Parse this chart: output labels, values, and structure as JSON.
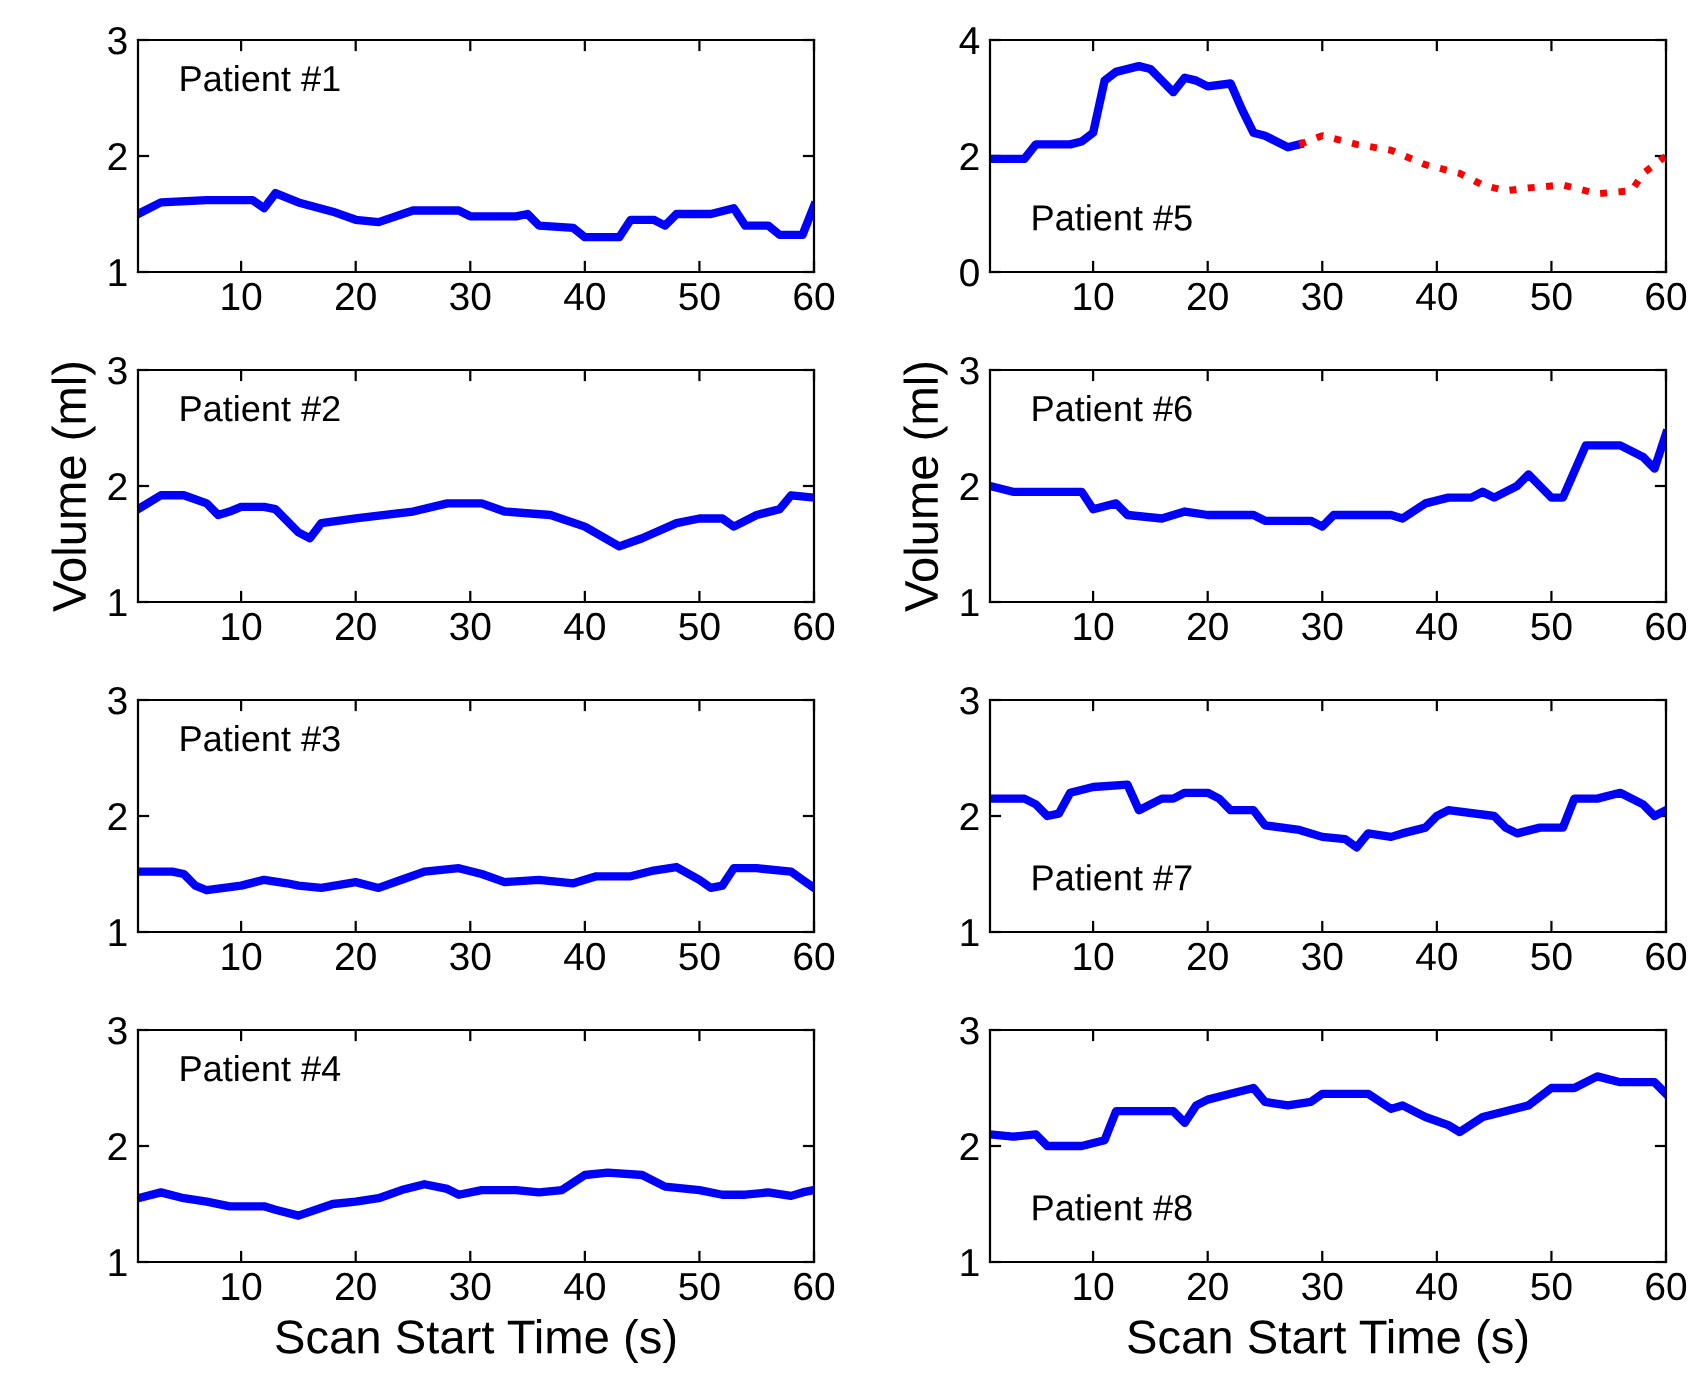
{
  "chart_data": [
    {
      "type": "line",
      "annotations": [
        "Patient #1"
      ],
      "xlim": [
        1,
        60
      ],
      "xticks": [
        10,
        20,
        30,
        40,
        50,
        60
      ],
      "ylim": [
        1,
        3
      ],
      "yticks": [
        1,
        2,
        3
      ],
      "grid": false,
      "line_style": "solid",
      "marker": "none",
      "series": [
        {
          "color": "#0000ff",
          "x": [
            1,
            3,
            7,
            11,
            12,
            13,
            15,
            18,
            20,
            22,
            25,
            29,
            30,
            34,
            35,
            36,
            39,
            40,
            43,
            44,
            46,
            47,
            48,
            51,
            53,
            54,
            56,
            57,
            59,
            60
          ],
          "values": [
            1.5,
            1.6,
            1.62,
            1.62,
            1.55,
            1.68,
            1.6,
            1.52,
            1.45,
            1.43,
            1.53,
            1.53,
            1.48,
            1.48,
            1.5,
            1.4,
            1.38,
            1.3,
            1.3,
            1.45,
            1.45,
            1.4,
            1.5,
            1.5,
            1.55,
            1.4,
            1.4,
            1.32,
            1.32,
            1.57
          ]
        }
      ]
    },
    {
      "type": "line",
      "annotations": [
        "Patient #2"
      ],
      "ylabel": "Volume (ml)",
      "xlim": [
        1,
        60
      ],
      "xticks": [
        10,
        20,
        30,
        40,
        50,
        60
      ],
      "ylim": [
        1,
        3
      ],
      "yticks": [
        1,
        2,
        3
      ],
      "grid": false,
      "line_style": "solid",
      "marker": "none",
      "series": [
        {
          "color": "#0000ff",
          "x": [
            1,
            3,
            5,
            7,
            8,
            9,
            10,
            12,
            13,
            15,
            16,
            17,
            20,
            25,
            28,
            31,
            33,
            37,
            40,
            43,
            45,
            48,
            50,
            52,
            53,
            55,
            57,
            58,
            60
          ],
          "values": [
            1.8,
            1.92,
            1.92,
            1.85,
            1.75,
            1.78,
            1.82,
            1.82,
            1.8,
            1.6,
            1.55,
            1.68,
            1.72,
            1.78,
            1.85,
            1.85,
            1.78,
            1.75,
            1.65,
            1.48,
            1.55,
            1.68,
            1.72,
            1.72,
            1.65,
            1.75,
            1.8,
            1.92,
            1.9
          ]
        }
      ]
    },
    {
      "type": "line",
      "annotations": [
        "Patient #3"
      ],
      "xlim": [
        1,
        60
      ],
      "xticks": [
        10,
        20,
        30,
        40,
        50,
        60
      ],
      "ylim": [
        1,
        3
      ],
      "yticks": [
        1,
        2,
        3
      ],
      "grid": false,
      "line_style": "solid",
      "marker": "none",
      "series": [
        {
          "color": "#0000ff",
          "x": [
            1,
            4,
            5,
            6,
            7,
            10,
            12,
            14,
            15,
            17,
            20,
            22,
            24,
            26,
            29,
            31,
            33,
            36,
            39,
            41,
            44,
            46,
            48,
            50,
            51,
            52,
            53,
            55,
            58,
            59,
            60
          ],
          "values": [
            1.52,
            1.52,
            1.5,
            1.4,
            1.36,
            1.4,
            1.45,
            1.42,
            1.4,
            1.38,
            1.43,
            1.38,
            1.45,
            1.52,
            1.55,
            1.5,
            1.43,
            1.45,
            1.42,
            1.48,
            1.48,
            1.53,
            1.56,
            1.45,
            1.38,
            1.4,
            1.55,
            1.55,
            1.52,
            1.45,
            1.38
          ]
        }
      ]
    },
    {
      "type": "line",
      "annotations": [
        "Patient #4"
      ],
      "xlabel": "Scan Start Time (s)",
      "xlim": [
        1,
        60
      ],
      "xticks": [
        10,
        20,
        30,
        40,
        50,
        60
      ],
      "ylim": [
        1,
        3
      ],
      "yticks": [
        1,
        2,
        3
      ],
      "grid": false,
      "line_style": "solid",
      "marker": "none",
      "series": [
        {
          "color": "#0000ff",
          "x": [
            1,
            3,
            5,
            7,
            9,
            12,
            13,
            15,
            18,
            20,
            22,
            24,
            26,
            28,
            29,
            31,
            34,
            36,
            38,
            40,
            42,
            45,
            47,
            50,
            52,
            54,
            56,
            58,
            59,
            60
          ],
          "values": [
            1.55,
            1.6,
            1.55,
            1.52,
            1.48,
            1.48,
            1.45,
            1.4,
            1.5,
            1.52,
            1.55,
            1.62,
            1.67,
            1.63,
            1.58,
            1.62,
            1.62,
            1.6,
            1.62,
            1.75,
            1.77,
            1.75,
            1.65,
            1.62,
            1.58,
            1.58,
            1.6,
            1.57,
            1.6,
            1.62
          ]
        }
      ]
    },
    {
      "type": "line",
      "annotations": [
        "Patient #5"
      ],
      "xlim": [
        1,
        60
      ],
      "xticks": [
        10,
        20,
        30,
        40,
        50,
        60
      ],
      "ylim": [
        0,
        4
      ],
      "yticks": [
        0,
        2,
        4
      ],
      "grid": false,
      "marker": "none",
      "series": [
        {
          "color": "#0000ff",
          "line_style": "solid",
          "x": [
            1,
            4,
            5,
            8,
            9,
            10,
            11,
            12,
            14,
            15,
            16,
            17,
            18,
            19,
            20,
            22,
            23,
            24,
            25,
            26,
            27,
            28
          ],
          "values": [
            1.95,
            1.95,
            2.2,
            2.2,
            2.25,
            2.4,
            3.3,
            3.45,
            3.55,
            3.5,
            3.3,
            3.1,
            3.35,
            3.3,
            3.2,
            3.25,
            2.8,
            2.4,
            2.35,
            2.25,
            2.15,
            2.2
          ]
        },
        {
          "color": "#ff0000",
          "line_style": "dotted",
          "x": [
            28,
            30,
            33,
            36,
            39,
            42,
            44,
            46,
            48,
            51,
            54,
            57,
            58,
            60
          ],
          "values": [
            2.2,
            2.35,
            2.2,
            2.1,
            1.85,
            1.7,
            1.5,
            1.4,
            1.45,
            1.5,
            1.35,
            1.4,
            1.7,
            2.0
          ]
        }
      ]
    },
    {
      "type": "line",
      "annotations": [
        "Patient #6"
      ],
      "ylabel": "Volume (ml)",
      "xlim": [
        1,
        60
      ],
      "xticks": [
        10,
        20,
        30,
        40,
        50,
        60
      ],
      "ylim": [
        1,
        3
      ],
      "yticks": [
        1,
        2,
        3
      ],
      "grid": false,
      "line_style": "solid",
      "marker": "none",
      "series": [
        {
          "color": "#0000ff",
          "x": [
            1,
            3,
            9,
            10,
            12,
            13,
            16,
            18,
            20,
            24,
            25,
            29,
            30,
            31,
            36,
            37,
            39,
            41,
            43,
            44,
            45,
            47,
            48,
            50,
            51,
            53,
            56,
            58,
            59,
            60
          ],
          "values": [
            2.0,
            1.95,
            1.95,
            1.8,
            1.85,
            1.75,
            1.72,
            1.78,
            1.75,
            1.75,
            1.7,
            1.7,
            1.65,
            1.75,
            1.75,
            1.72,
            1.85,
            1.9,
            1.9,
            1.95,
            1.9,
            2.0,
            2.1,
            1.9,
            1.9,
            2.35,
            2.35,
            2.25,
            2.15,
            2.45
          ]
        }
      ]
    },
    {
      "type": "line",
      "annotations": [
        "Patient #7"
      ],
      "xlim": [
        1,
        60
      ],
      "xticks": [
        10,
        20,
        30,
        40,
        50,
        60
      ],
      "ylim": [
        1,
        3
      ],
      "yticks": [
        1,
        2,
        3
      ],
      "grid": false,
      "line_style": "solid",
      "marker": "none",
      "series": [
        {
          "color": "#0000ff",
          "x": [
            1,
            4,
            5,
            6,
            7,
            8,
            10,
            13,
            14,
            16,
            17,
            18,
            20,
            21,
            22,
            24,
            25,
            28,
            30,
            32,
            33,
            34,
            36,
            37,
            39,
            40,
            41,
            45,
            46,
            47,
            49,
            51,
            52,
            54,
            56,
            58,
            59,
            60
          ],
          "values": [
            2.15,
            2.15,
            2.1,
            2.0,
            2.02,
            2.2,
            2.25,
            2.27,
            2.05,
            2.15,
            2.15,
            2.2,
            2.2,
            2.15,
            2.05,
            2.05,
            1.92,
            1.88,
            1.82,
            1.8,
            1.73,
            1.85,
            1.82,
            1.85,
            1.9,
            2.0,
            2.05,
            2.0,
            1.9,
            1.85,
            1.9,
            1.9,
            2.15,
            2.15,
            2.2,
            2.1,
            2.0,
            2.05
          ]
        }
      ]
    },
    {
      "type": "line",
      "annotations": [
        "Patient #8"
      ],
      "xlabel": "Scan Start Time (s)",
      "xlim": [
        1,
        60
      ],
      "xticks": [
        10,
        20,
        30,
        40,
        50,
        60
      ],
      "ylim": [
        1,
        3
      ],
      "yticks": [
        1,
        2,
        3
      ],
      "grid": false,
      "line_style": "solid",
      "marker": "none",
      "series": [
        {
          "color": "#0000ff",
          "x": [
            1,
            3,
            5,
            6,
            9,
            11,
            12,
            15,
            17,
            18,
            19,
            20,
            22,
            24,
            25,
            27,
            29,
            30,
            34,
            36,
            37,
            39,
            41,
            42,
            44,
            46,
            48,
            50,
            52,
            54,
            56,
            59,
            60
          ],
          "values": [
            2.1,
            2.08,
            2.1,
            2.0,
            2.0,
            2.05,
            2.3,
            2.3,
            2.3,
            2.2,
            2.35,
            2.4,
            2.45,
            2.5,
            2.38,
            2.35,
            2.38,
            2.45,
            2.45,
            2.32,
            2.35,
            2.25,
            2.18,
            2.12,
            2.25,
            2.3,
            2.35,
            2.5,
            2.5,
            2.6,
            2.55,
            2.55,
            2.45
          ]
        }
      ]
    }
  ]
}
